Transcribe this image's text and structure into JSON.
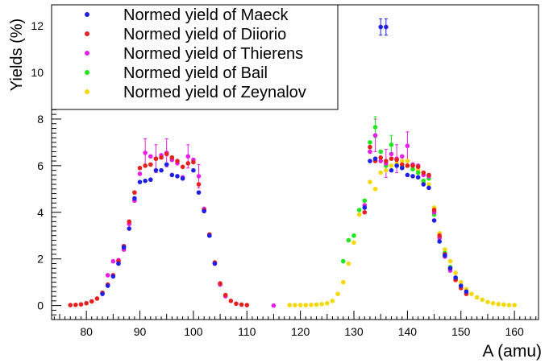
{
  "chart_data": {
    "type": "scatter",
    "xlabel": "A (amu)",
    "ylabel": "Yields (%)",
    "xlim": [
      73.5,
      164.5
    ],
    "ylim": [
      -0.6,
      12.9
    ],
    "x_ticks": [
      80,
      90,
      100,
      110,
      120,
      130,
      140,
      150,
      160
    ],
    "y_ticks": [
      0,
      2,
      4,
      6,
      8,
      10,
      12
    ],
    "grid": false,
    "legend_position": "top-left",
    "series": [
      {
        "name": "Normed yield of Maeck",
        "color": "#1f1fe6",
        "points": [
          [
            83,
            0.5
          ],
          [
            84,
            0.85
          ],
          [
            85,
            1.25
          ],
          [
            86,
            1.8
          ],
          [
            87,
            2.5
          ],
          [
            88,
            3.3
          ],
          [
            89,
            4.6
          ],
          [
            90,
            5.3
          ],
          [
            91,
            5.35
          ],
          [
            92,
            5.4
          ],
          [
            93,
            5.8
          ],
          [
            94,
            5.8
          ],
          [
            95,
            6.05
          ],
          [
            96,
            5.6
          ],
          [
            97,
            5.55
          ],
          [
            98,
            5.45
          ],
          [
            100,
            5.8
          ],
          [
            101,
            4.85
          ],
          [
            102,
            4.05
          ],
          [
            103,
            3.0
          ],
          [
            104,
            1.8
          ],
          [
            132,
            4.2
          ],
          [
            133,
            6.2
          ],
          [
            134,
            6.3
          ],
          [
            135,
            11.95
          ],
          [
            136,
            11.95
          ],
          [
            137,
            5.8
          ],
          [
            138,
            6.0
          ],
          [
            139,
            5.9
          ],
          [
            140,
            5.6
          ],
          [
            141,
            5.55
          ],
          [
            142,
            5.5
          ],
          [
            143,
            5.2
          ],
          [
            144,
            5.05
          ],
          [
            145,
            3.65
          ],
          [
            146,
            2.75
          ],
          [
            147,
            2.15
          ],
          [
            148,
            1.6
          ],
          [
            149,
            1.2
          ],
          [
            150,
            0.85
          ],
          [
            151,
            0.6
          ]
        ],
        "errors": [
          [
            135,
            0.35
          ],
          [
            136,
            0.35
          ]
        ]
      },
      {
        "name": "Normed yield of Diiorio",
        "color": "#e61f1f",
        "points": [
          [
            77,
            0.02
          ],
          [
            78,
            0.03
          ],
          [
            79,
            0.05
          ],
          [
            80,
            0.1
          ],
          [
            81,
            0.18
          ],
          [
            82,
            0.3
          ],
          [
            83,
            0.55
          ],
          [
            84,
            0.9
          ],
          [
            85,
            1.3
          ],
          [
            86,
            1.9
          ],
          [
            87,
            2.55
          ],
          [
            88,
            3.6
          ],
          [
            89,
            4.85
          ],
          [
            90,
            5.9
          ],
          [
            91,
            6.0
          ],
          [
            92,
            6.05
          ],
          [
            93,
            6.3
          ],
          [
            94,
            6.35
          ],
          [
            95,
            6.5
          ],
          [
            96,
            6.35
          ],
          [
            97,
            6.2
          ],
          [
            98,
            5.95
          ],
          [
            99,
            6.1
          ],
          [
            100,
            6.15
          ],
          [
            101,
            5.2
          ],
          [
            102,
            4.1
          ],
          [
            103,
            3.05
          ],
          [
            104,
            1.85
          ],
          [
            105,
            0.95
          ],
          [
            106,
            0.45
          ],
          [
            107,
            0.2
          ],
          [
            108,
            0.08
          ],
          [
            109,
            0.04
          ],
          [
            110,
            0.02
          ],
          [
            132,
            4.0
          ],
          [
            133,
            6.8
          ],
          [
            134,
            6.2
          ],
          [
            135,
            6.35
          ],
          [
            136,
            6.2
          ],
          [
            137,
            6.3
          ],
          [
            138,
            6.25
          ],
          [
            139,
            6.05
          ],
          [
            140,
            6.0
          ],
          [
            141,
            6.0
          ],
          [
            142,
            5.95
          ],
          [
            143,
            5.7
          ],
          [
            144,
            5.6
          ],
          [
            145,
            4.1
          ],
          [
            146,
            3.0
          ],
          [
            147,
            2.2
          ],
          [
            148,
            1.6
          ],
          [
            149,
            1.1
          ],
          [
            150,
            0.75
          ],
          [
            151,
            0.5
          ]
        ]
      },
      {
        "name": "Normed yield of Thierens",
        "color": "#e61fe6",
        "points": [
          [
            84,
            1.3
          ],
          [
            85,
            1.9
          ],
          [
            86,
            1.95
          ],
          [
            87,
            2.4
          ],
          [
            88,
            3.5
          ],
          [
            89,
            4.5
          ],
          [
            90,
            5.65
          ],
          [
            91,
            6.55
          ],
          [
            92,
            6.4
          ],
          [
            93,
            6.3
          ],
          [
            94,
            6.45
          ],
          [
            95,
            6.55
          ],
          [
            96,
            6.25
          ],
          [
            97,
            6.1
          ],
          [
            98,
            5.5
          ],
          [
            99,
            6.4
          ],
          [
            100,
            6.25
          ],
          [
            101,
            5.55
          ],
          [
            102,
            4.15
          ],
          [
            103,
            3.0
          ],
          [
            104,
            1.8
          ],
          [
            105,
            0.9
          ],
          [
            106,
            0.4
          ],
          [
            115,
            0.0
          ],
          [
            132,
            4.3
          ],
          [
            133,
            6.6
          ],
          [
            134,
            7.3
          ],
          [
            135,
            6.2
          ],
          [
            136,
            6.1
          ],
          [
            137,
            6.5
          ],
          [
            138,
            6.3
          ],
          [
            139,
            6.4
          ],
          [
            140,
            6.85
          ],
          [
            141,
            6.05
          ],
          [
            142,
            6.0
          ],
          [
            143,
            5.6
          ],
          [
            144,
            5.55
          ],
          [
            145,
            4.0
          ],
          [
            146,
            2.9
          ],
          [
            147,
            2.1
          ],
          [
            148,
            1.5
          ],
          [
            149,
            1.1
          ]
        ],
        "errors": [
          [
            91,
            0.6
          ],
          [
            93,
            0.6
          ],
          [
            95,
            0.6
          ],
          [
            99,
            0.5
          ],
          [
            101,
            0.5
          ],
          [
            134,
            0.7
          ],
          [
            136,
            0.6
          ],
          [
            138,
            0.6
          ],
          [
            140,
            0.6
          ]
        ]
      },
      {
        "name": "Normed yield of Bail",
        "color": "#1fe61f",
        "points": [
          [
            128,
            1.9
          ],
          [
            129,
            2.8
          ],
          [
            130,
            3.0
          ],
          [
            131,
            4.1
          ],
          [
            132,
            4.5
          ],
          [
            133,
            7.0
          ],
          [
            134,
            7.65
          ],
          [
            135,
            6.6
          ],
          [
            136,
            6.0
          ],
          [
            137,
            6.9
          ],
          [
            138,
            6.0
          ],
          [
            139,
            5.95
          ],
          [
            140,
            6.0
          ],
          [
            141,
            5.85
          ],
          [
            142,
            5.7
          ],
          [
            143,
            5.35
          ],
          [
            144,
            5.45
          ],
          [
            145,
            3.9
          ],
          [
            146,
            2.9
          ],
          [
            147,
            2.25
          ],
          [
            148,
            1.65
          ],
          [
            149,
            1.15
          ]
        ],
        "errors": [
          [
            134,
            0.45
          ],
          [
            137,
            0.4
          ]
        ]
      },
      {
        "name": "Normed yield of Zeynalov",
        "color": "#f5d80a",
        "points": [
          [
            118,
            0.02
          ],
          [
            119,
            0.02
          ],
          [
            120,
            0.02
          ],
          [
            121,
            0.02
          ],
          [
            122,
            0.03
          ],
          [
            123,
            0.04
          ],
          [
            124,
            0.06
          ],
          [
            125,
            0.1
          ],
          [
            126,
            0.2
          ],
          [
            127,
            0.5
          ],
          [
            128,
            1.0
          ],
          [
            129,
            1.8
          ],
          [
            130,
            2.7
          ],
          [
            131,
            3.9
          ],
          [
            132,
            4.5
          ],
          [
            133,
            5.3
          ],
          [
            134,
            5.0
          ],
          [
            135,
            5.7
          ],
          [
            136,
            5.8
          ],
          [
            137,
            6.0
          ],
          [
            138,
            6.1
          ],
          [
            139,
            6.2
          ],
          [
            140,
            6.2
          ],
          [
            141,
            6.0
          ],
          [
            142,
            5.8
          ],
          [
            143,
            5.3
          ],
          [
            144,
            5.2
          ],
          [
            145,
            4.2
          ],
          [
            146,
            3.1
          ],
          [
            147,
            2.4
          ],
          [
            148,
            1.9
          ],
          [
            149,
            1.4
          ],
          [
            150,
            1.0
          ],
          [
            151,
            0.7
          ],
          [
            152,
            0.5
          ],
          [
            153,
            0.35
          ],
          [
            154,
            0.25
          ],
          [
            155,
            0.15
          ],
          [
            156,
            0.1
          ],
          [
            157,
            0.06
          ],
          [
            158,
            0.04
          ],
          [
            159,
            0.02
          ],
          [
            160,
            0.02
          ]
        ]
      }
    ]
  }
}
